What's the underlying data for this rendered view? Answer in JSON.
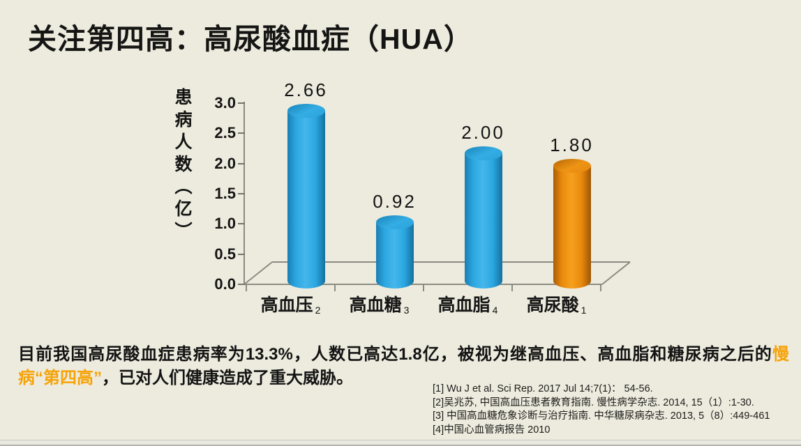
{
  "slide": {
    "title": "关注第四高：高尿酸血症（HUA）",
    "background_color": "#edebde"
  },
  "chart_data": {
    "type": "bar",
    "style": "3d-cylinder",
    "title": "",
    "xlabel": "",
    "ylabel": "患病人数（亿）",
    "ylim": [
      0.0,
      3.0
    ],
    "ytick_step": 0.5,
    "yticks": [
      "0.0",
      "0.5",
      "1.0",
      "1.5",
      "2.0",
      "2.5",
      "3.0"
    ],
    "categories": [
      "高血压",
      "高血糖",
      "高血脂",
      "高尿酸"
    ],
    "category_ref_marks": [
      "2",
      "3",
      "4",
      "1"
    ],
    "values": [
      2.66,
      0.92,
      2.0,
      1.8
    ],
    "value_labels": [
      "2.66",
      "0.92",
      "2.00",
      "1.80"
    ],
    "bar_colors": [
      "#2ba6e0",
      "#2ba6e0",
      "#2ba6e0",
      "#e8890c"
    ],
    "accent_blue": "#2ba6e0",
    "accent_orange": "#e8890c",
    "grid": false,
    "legend": false
  },
  "summary": {
    "text_before": "目前我国高尿酸血症患病率为13.3%，人数已高达1.8亿，被视为继高血压、高血脂和糖尿病之后的",
    "text_highlight": "慢病“第四高”",
    "text_after": "，已对人们健康造成了重大威胁。",
    "highlight_color": "#f6a309"
  },
  "references": [
    "[1] Wu J et al. Sci Rep. 2017 Jul 14;7(1)： 54-56.",
    "[2]吴兆苏, 中国高血压患者教育指南. 慢性病学杂志. 2014, 15（1）:1-30.",
    "[3] 中国高血糖危象诊断与治疗指南. 中华糖尿病杂志. 2013, 5（8）:449-461",
    "[4]中国心血管病报告 2010"
  ]
}
